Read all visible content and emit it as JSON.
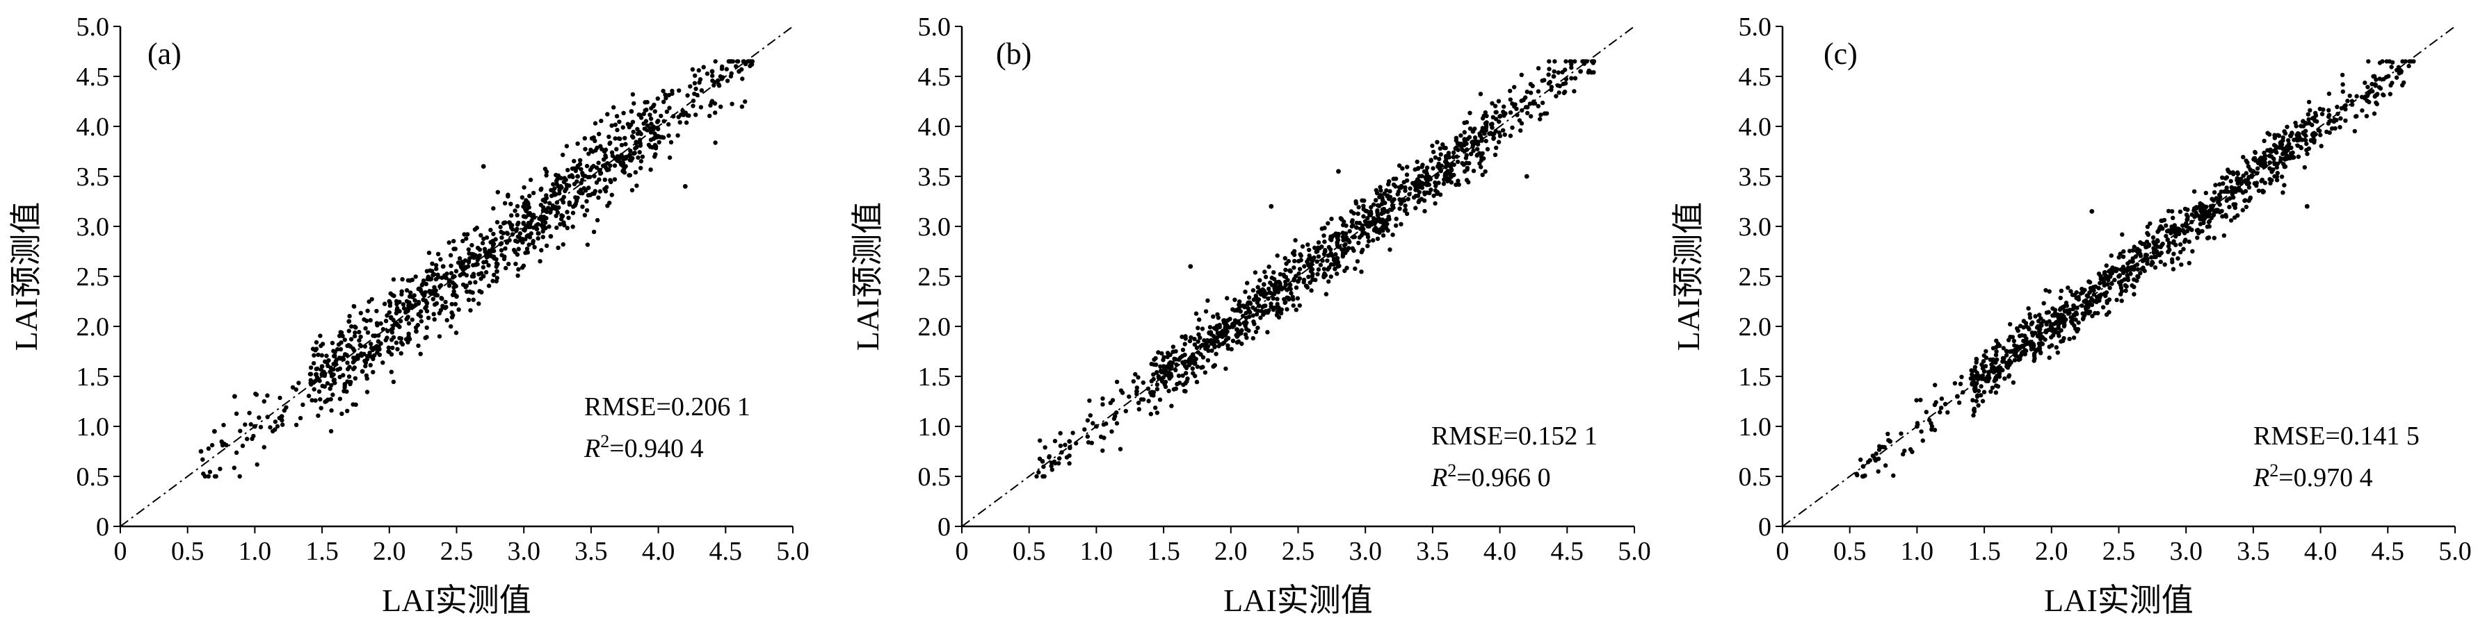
{
  "figure": {
    "panels": [
      {
        "tag": "(a)",
        "rmse_text": "RMSE=0.206 1",
        "r2_symbol": "R",
        "r2_sup": "2",
        "r2_value": "=0.940 4"
      },
      {
        "tag": "(b)",
        "rmse_text": "RMSE=0.152 1",
        "r2_symbol": "R",
        "r2_sup": "2",
        "r2_value": "=0.966 0"
      },
      {
        "tag": "(c)",
        "rmse_text": "RMSE=0.141 5",
        "r2_symbol": "R",
        "r2_sup": "2",
        "r2_value": "=0.970 4"
      }
    ]
  },
  "chart_data": [
    {
      "type": "scatter",
      "panel": "(a)",
      "xlabel": "LAI实测值",
      "ylabel": "LAI预测值",
      "xlim": [
        0,
        5.0
      ],
      "ylim": [
        0,
        5.0
      ],
      "x_ticks": [
        "0",
        "0.5",
        "1.0",
        "1.5",
        "2.0",
        "2.5",
        "3.0",
        "3.5",
        "4.0",
        "4.5",
        "5.0"
      ],
      "y_ticks": [
        "0",
        "0.5",
        "1.0",
        "1.5",
        "2.0",
        "2.5",
        "3.0",
        "3.5",
        "4.0",
        "4.5",
        "5.0"
      ],
      "reference_line": "1:1",
      "rmse": 0.2061,
      "r2": 0.9404,
      "points_sample": [
        [
          0.6,
          0.75
        ],
        [
          0.7,
          0.95
        ],
        [
          0.85,
          1.3
        ],
        [
          1.0,
          1.0
        ],
        [
          1.2,
          1.1
        ],
        [
          1.5,
          1.6
        ],
        [
          1.7,
          2.05
        ],
        [
          1.8,
          1.55
        ],
        [
          2.0,
          2.25
        ],
        [
          2.2,
          1.95
        ],
        [
          2.4,
          2.6
        ],
        [
          2.5,
          2.3
        ],
        [
          2.7,
          3.6
        ],
        [
          2.8,
          2.55
        ],
        [
          3.0,
          3.1
        ],
        [
          3.2,
          2.9
        ],
        [
          3.4,
          3.5
        ],
        [
          3.6,
          3.75
        ],
        [
          3.8,
          4.15
        ],
        [
          4.0,
          3.9
        ],
        [
          4.2,
          3.4
        ],
        [
          4.4,
          4.55
        ],
        [
          4.6,
          4.55
        ]
      ],
      "point_count": 1100,
      "scatter_sigma": 0.2061
    },
    {
      "type": "scatter",
      "panel": "(b)",
      "xlabel": "LAI实测值",
      "ylabel": "LAI预测值",
      "xlim": [
        0,
        5.0
      ],
      "ylim": [
        0,
        5.0
      ],
      "x_ticks": [
        "0",
        "0.5",
        "1.0",
        "1.5",
        "2.0",
        "2.5",
        "3.0",
        "3.5",
        "4.0",
        "4.5",
        "5.0"
      ],
      "y_ticks": [
        "0",
        "0.5",
        "1.0",
        "1.5",
        "2.0",
        "2.5",
        "3.0",
        "3.5",
        "4.0",
        "4.5",
        "5.0"
      ],
      "reference_line": "1:1",
      "rmse": 0.1521,
      "r2": 0.966,
      "points_sample": [
        [
          0.6,
          0.65
        ],
        [
          0.8,
          0.85
        ],
        [
          1.0,
          1.0
        ],
        [
          1.3,
          1.35
        ],
        [
          1.5,
          1.6
        ],
        [
          1.7,
          2.6
        ],
        [
          1.9,
          1.85
        ],
        [
          2.1,
          2.2
        ],
        [
          2.3,
          3.2
        ],
        [
          2.5,
          2.45
        ],
        [
          2.7,
          2.75
        ],
        [
          2.8,
          3.55
        ],
        [
          3.0,
          3.05
        ],
        [
          3.2,
          3.25
        ],
        [
          3.4,
          3.45
        ],
        [
          3.6,
          3.7
        ],
        [
          3.8,
          3.95
        ],
        [
          4.0,
          4.1
        ],
        [
          4.2,
          3.5
        ],
        [
          4.4,
          4.5
        ],
        [
          4.6,
          4.55
        ]
      ],
      "point_count": 1100,
      "scatter_sigma": 0.1521
    },
    {
      "type": "scatter",
      "panel": "(c)",
      "xlabel": "LAI实测值",
      "ylabel": "LAI预测值",
      "xlim": [
        0,
        5.0
      ],
      "ylim": [
        0,
        5.0
      ],
      "x_ticks": [
        "0",
        "0.5",
        "1.0",
        "1.5",
        "2.0",
        "2.5",
        "3.0",
        "3.5",
        "4.0",
        "4.5",
        "5.0"
      ],
      "y_ticks": [
        "0",
        "0.5",
        "1.0",
        "1.5",
        "2.0",
        "2.5",
        "3.0",
        "3.5",
        "4.0",
        "4.5",
        "5.0"
      ],
      "reference_line": "1:1",
      "rmse": 0.1415,
      "r2": 0.9704,
      "points_sample": [
        [
          0.6,
          0.6
        ],
        [
          0.8,
          0.85
        ],
        [
          1.0,
          1.0
        ],
        [
          1.3,
          1.3
        ],
        [
          1.5,
          1.55
        ],
        [
          1.7,
          1.75
        ],
        [
          1.9,
          2.0
        ],
        [
          2.1,
          2.15
        ],
        [
          2.3,
          3.15
        ],
        [
          2.5,
          2.5
        ],
        [
          2.7,
          2.7
        ],
        [
          2.9,
          2.95
        ],
        [
          3.1,
          3.1
        ],
        [
          3.3,
          3.35
        ],
        [
          3.5,
          3.55
        ],
        [
          3.7,
          3.8
        ],
        [
          3.9,
          3.2
        ],
        [
          4.1,
          4.05
        ],
        [
          4.4,
          4.5
        ],
        [
          4.6,
          4.55
        ]
      ],
      "point_count": 1100,
      "scatter_sigma": 0.1415
    }
  ]
}
